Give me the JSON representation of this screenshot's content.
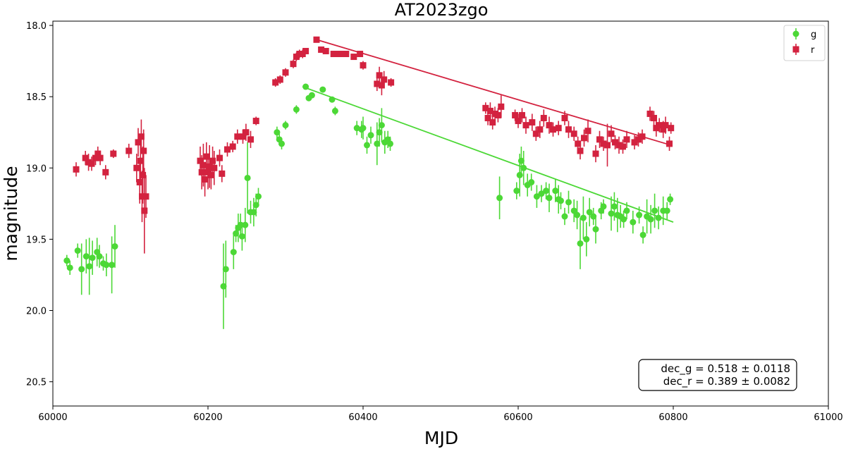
{
  "chart_data": {
    "type": "scatter",
    "title": "AT2023zgo",
    "xlabel": "MJD",
    "ylabel": "magnitude",
    "xlim": [
      60000,
      61000
    ],
    "ylim": [
      20.67,
      17.97
    ],
    "y_inverted": true,
    "xticks": [
      "60000",
      "60200",
      "60400",
      "60600",
      "60800",
      "61000"
    ],
    "yticks": [
      "18.0",
      "18.5",
      "19.0",
      "19.5",
      "20.0",
      "20.5"
    ],
    "grid": false,
    "legend_position": "top-right",
    "colors": {
      "g": "#4cd836",
      "r": "#d3223f"
    },
    "annotation_lines": [
      "dec_g = 0.518 ± 0.0118",
      "dec_r = 0.389 ± 0.0082"
    ],
    "series": [
      {
        "name": "g",
        "marker": "circle",
        "points": [
          [
            60018,
            19.65,
            0.04
          ],
          [
            60022,
            19.7,
            0.05
          ],
          [
            60032,
            19.58,
            0.05
          ],
          [
            60037,
            19.71,
            0.18
          ],
          [
            60043,
            19.62,
            0.12
          ],
          [
            60047,
            19.69,
            0.2
          ],
          [
            60051,
            19.63,
            0.12
          ],
          [
            60057,
            19.59,
            0.1
          ],
          [
            60060,
            19.62,
            0.08
          ],
          [
            60065,
            19.67,
            0.05
          ],
          [
            60069,
            19.68,
            0.08
          ],
          [
            60076,
            19.68,
            0.2
          ],
          [
            60080,
            19.55,
            0.15
          ],
          [
            60220,
            19.83,
            0.3
          ],
          [
            60223,
            19.71,
            0.2
          ],
          [
            60233,
            19.59,
            0.12
          ],
          [
            60236,
            19.46,
            0.06
          ],
          [
            60239,
            19.42,
            0.1
          ],
          [
            60242,
            19.4,
            0.08
          ],
          [
            60244,
            19.48,
            0.1
          ],
          [
            60248,
            19.4,
            0.12
          ],
          [
            60251,
            19.07,
            0.25
          ],
          [
            60255,
            19.31,
            0.08
          ],
          [
            60259,
            19.31,
            0.1
          ],
          [
            60262,
            19.26,
            0.08
          ],
          [
            60265,
            19.2,
            0.06
          ],
          [
            60289,
            18.75,
            0.04
          ],
          [
            60292,
            18.8,
            0.04
          ],
          [
            60295,
            18.83,
            0.04
          ],
          [
            60300,
            18.7,
            0.03
          ],
          [
            60314,
            18.59,
            0.03
          ],
          [
            60326,
            18.43,
            0.02
          ],
          [
            60330,
            18.51,
            0.02
          ],
          [
            60334,
            18.49,
            0.02
          ],
          [
            60348,
            18.45,
            0.02
          ],
          [
            60360,
            18.52,
            0.02
          ],
          [
            60364,
            18.6,
            0.03
          ],
          [
            60392,
            18.72,
            0.05
          ],
          [
            60398,
            18.73,
            0.06
          ],
          [
            60400,
            18.72,
            0.08
          ],
          [
            60405,
            18.84,
            0.06
          ],
          [
            60410,
            18.77,
            0.06
          ],
          [
            60418,
            18.83,
            0.15
          ],
          [
            60421,
            18.75,
            0.1
          ],
          [
            60424,
            18.7,
            0.12
          ],
          [
            60428,
            18.82,
            0.08
          ],
          [
            60432,
            18.8,
            0.06
          ],
          [
            60435,
            18.83,
            0.05
          ],
          [
            60576,
            19.21,
            0.15
          ],
          [
            60598,
            19.16,
            0.06
          ],
          [
            60602,
            19.05,
            0.15
          ],
          [
            60604,
            18.95,
            0.1
          ],
          [
            60607,
            19.0,
            0.12
          ],
          [
            60612,
            19.12,
            0.08
          ],
          [
            60617,
            19.1,
            0.06
          ],
          [
            60624,
            19.2,
            0.08
          ],
          [
            60630,
            19.18,
            0.06
          ],
          [
            60636,
            19.16,
            0.06
          ],
          [
            60640,
            19.21,
            0.1
          ],
          [
            60648,
            19.16,
            0.08
          ],
          [
            60652,
            19.22,
            0.1
          ],
          [
            60655,
            19.23,
            0.06
          ],
          [
            60660,
            19.34,
            0.06
          ],
          [
            60665,
            19.24,
            0.08
          ],
          [
            60672,
            19.3,
            0.08
          ],
          [
            60676,
            19.33,
            0.1
          ],
          [
            60680,
            19.53,
            0.18
          ],
          [
            60684,
            19.35,
            0.15
          ],
          [
            60688,
            19.5,
            0.12
          ],
          [
            60692,
            19.31,
            0.1
          ],
          [
            60697,
            19.34,
            0.06
          ],
          [
            60700,
            19.43,
            0.1
          ],
          [
            60707,
            19.3,
            0.06
          ],
          [
            60710,
            19.27,
            0.05
          ],
          [
            60720,
            19.32,
            0.12
          ],
          [
            60724,
            19.27,
            0.1
          ],
          [
            60728,
            19.33,
            0.12
          ],
          [
            60732,
            19.34,
            0.08
          ],
          [
            60736,
            19.36,
            0.06
          ],
          [
            60740,
            19.3,
            0.06
          ],
          [
            60748,
            19.38,
            0.08
          ],
          [
            60756,
            19.33,
            0.06
          ],
          [
            60761,
            19.47,
            0.06
          ],
          [
            60766,
            19.34,
            0.12
          ],
          [
            60771,
            19.36,
            0.1
          ],
          [
            60776,
            19.3,
            0.12
          ],
          [
            60781,
            19.35,
            0.08
          ],
          [
            60787,
            19.3,
            0.1
          ],
          [
            60792,
            19.3,
            0.06
          ],
          [
            60796,
            19.22,
            0.04
          ]
        ],
        "fit": [
          [
            60322,
            18.43
          ],
          [
            60800,
            19.38
          ]
        ]
      },
      {
        "name": "r",
        "marker": "square",
        "points": [
          [
            60030,
            19.01,
            0.05
          ],
          [
            60042,
            18.93,
            0.05
          ],
          [
            60046,
            18.96,
            0.06
          ],
          [
            60050,
            18.97,
            0.05
          ],
          [
            60055,
            18.93,
            0.05
          ],
          [
            60058,
            18.9,
            0.05
          ],
          [
            60061,
            18.93,
            0.05
          ],
          [
            60068,
            19.03,
            0.05
          ],
          [
            60078,
            18.9,
            0.03
          ],
          [
            60098,
            18.88,
            0.05
          ],
          [
            60108,
            19.0,
            0.1
          ],
          [
            60110,
            18.82,
            0.1
          ],
          [
            60112,
            19.1,
            0.15
          ],
          [
            60113,
            18.95,
            0.15
          ],
          [
            60114,
            18.78,
            0.12
          ],
          [
            60115,
            19.2,
            0.18
          ],
          [
            60116,
            19.05,
            0.2
          ],
          [
            60117,
            18.88,
            0.15
          ],
          [
            60118,
            19.3,
            0.3
          ],
          [
            60120,
            19.2,
            0.15
          ],
          [
            60190,
            18.95,
            0.1
          ],
          [
            60192,
            19.03,
            0.12
          ],
          [
            60194,
            18.98,
            0.15
          ],
          [
            60196,
            19.08,
            0.12
          ],
          [
            60198,
            18.92,
            0.1
          ],
          [
            60200,
            19.03,
            0.12
          ],
          [
            60202,
            18.99,
            0.15
          ],
          [
            60204,
            19.05,
            0.1
          ],
          [
            60206,
            18.95,
            0.1
          ],
          [
            60208,
            19.0,
            0.12
          ],
          [
            60215,
            18.93,
            0.06
          ],
          [
            60218,
            19.04,
            0.06
          ],
          [
            60225,
            18.87,
            0.05
          ],
          [
            60232,
            18.85,
            0.04
          ],
          [
            60238,
            18.78,
            0.05
          ],
          [
            60245,
            18.78,
            0.05
          ],
          [
            60249,
            18.75,
            0.06
          ],
          [
            60255,
            18.8,
            0.06
          ],
          [
            60262,
            18.67,
            0.03
          ],
          [
            60287,
            18.4,
            0.03
          ],
          [
            60293,
            18.38,
            0.03
          ],
          [
            60300,
            18.33,
            0.03
          ],
          [
            60310,
            18.27,
            0.03
          ],
          [
            60314,
            18.22,
            0.03
          ],
          [
            60318,
            18.2,
            0.03
          ],
          [
            60322,
            18.2,
            0.03
          ],
          [
            60326,
            18.18,
            0.02
          ],
          [
            60340,
            18.1,
            0.02
          ],
          [
            60346,
            18.17,
            0.02
          ],
          [
            60352,
            18.18,
            0.02
          ],
          [
            60362,
            18.2,
            0.02
          ],
          [
            60370,
            18.2,
            0.02
          ],
          [
            60378,
            18.2,
            0.02
          ],
          [
            60388,
            18.22,
            0.02
          ],
          [
            60396,
            18.2,
            0.02
          ],
          [
            60400,
            18.28,
            0.03
          ],
          [
            60418,
            18.41,
            0.05
          ],
          [
            60421,
            18.35,
            0.06
          ],
          [
            60424,
            18.42,
            0.07
          ],
          [
            60427,
            18.38,
            0.06
          ],
          [
            60436,
            18.4,
            0.03
          ],
          [
            60558,
            18.58,
            0.04
          ],
          [
            60561,
            18.65,
            0.05
          ],
          [
            60564,
            18.6,
            0.06
          ],
          [
            60567,
            18.68,
            0.05
          ],
          [
            60570,
            18.62,
            0.05
          ],
          [
            60574,
            18.63,
            0.05
          ],
          [
            60578,
            18.57,
            0.08
          ],
          [
            60596,
            18.63,
            0.04
          ],
          [
            60600,
            18.67,
            0.05
          ],
          [
            60605,
            18.63,
            0.05
          ],
          [
            60610,
            18.7,
            0.06
          ],
          [
            60618,
            18.68,
            0.06
          ],
          [
            60623,
            18.76,
            0.05
          ],
          [
            60628,
            18.73,
            0.06
          ],
          [
            60633,
            18.65,
            0.06
          ],
          [
            60640,
            18.7,
            0.06
          ],
          [
            60645,
            18.73,
            0.05
          ],
          [
            60652,
            18.72,
            0.05
          ],
          [
            60660,
            18.65,
            0.05
          ],
          [
            60665,
            18.73,
            0.06
          ],
          [
            60672,
            18.76,
            0.05
          ],
          [
            60677,
            18.83,
            0.05
          ],
          [
            60680,
            18.88,
            0.06
          ],
          [
            60685,
            18.79,
            0.06
          ],
          [
            60690,
            18.74,
            0.08
          ],
          [
            60700,
            18.9,
            0.06
          ],
          [
            60705,
            18.8,
            0.06
          ],
          [
            60710,
            18.83,
            0.05
          ],
          [
            60715,
            18.84,
            0.15
          ],
          [
            60720,
            18.76,
            0.06
          ],
          [
            60725,
            18.82,
            0.05
          ],
          [
            60730,
            18.84,
            0.06
          ],
          [
            60735,
            18.85,
            0.05
          ],
          [
            60740,
            18.8,
            0.06
          ],
          [
            60750,
            18.82,
            0.05
          ],
          [
            60755,
            18.8,
            0.05
          ],
          [
            60760,
            18.78,
            0.05
          ],
          [
            60770,
            18.62,
            0.05
          ],
          [
            60775,
            18.65,
            0.05
          ],
          [
            60778,
            18.72,
            0.06
          ],
          [
            60782,
            18.7,
            0.05
          ],
          [
            60787,
            18.73,
            0.06
          ],
          [
            60790,
            18.7,
            0.06
          ],
          [
            60795,
            18.83,
            0.05
          ],
          [
            60797,
            18.72,
            0.04
          ]
        ],
        "fit": [
          [
            60340,
            18.1
          ],
          [
            60797,
            18.84
          ]
        ]
      }
    ]
  }
}
